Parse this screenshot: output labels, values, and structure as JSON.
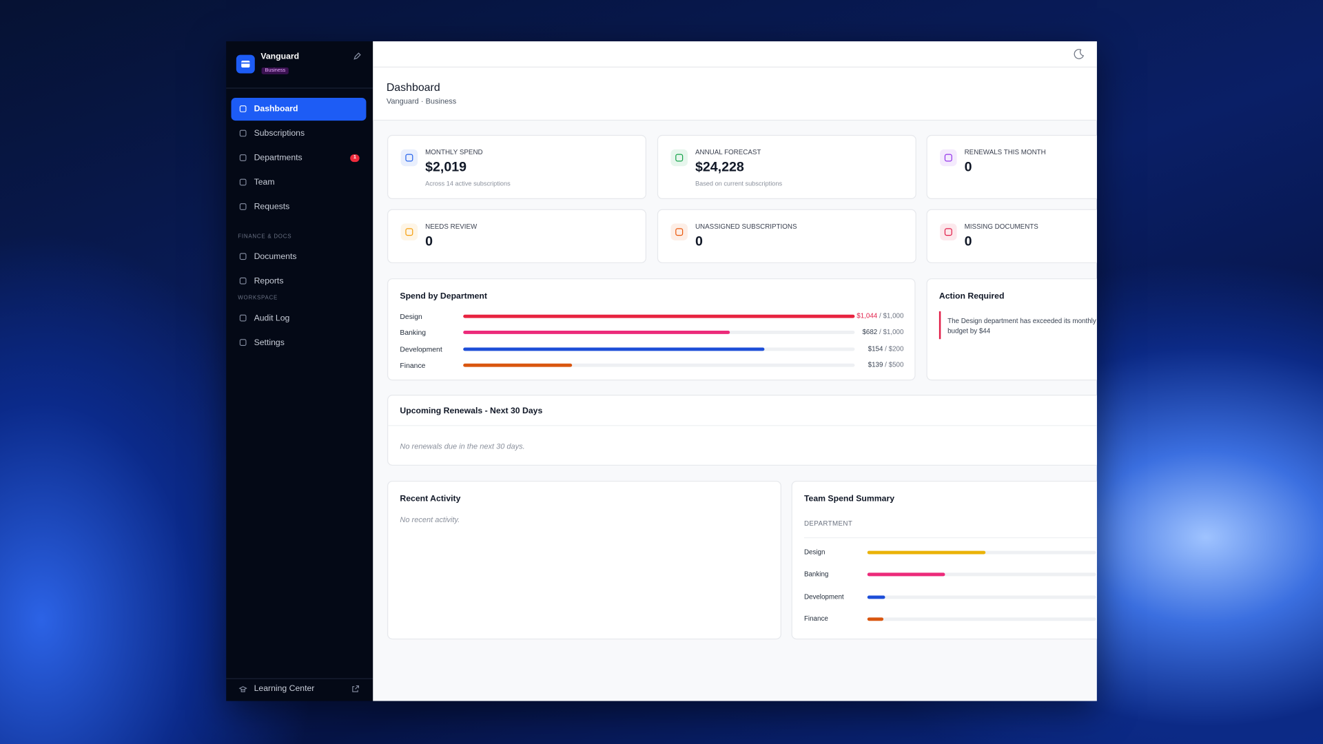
{
  "sidebar": {
    "brand": "Vanguard",
    "plan": "Business",
    "nav": [
      {
        "label": "Dashboard",
        "active": true
      },
      {
        "label": "Subscriptions"
      },
      {
        "label": "Departments",
        "badge": "1"
      },
      {
        "label": "Team"
      },
      {
        "label": "Requests"
      }
    ],
    "sections": [
      {
        "title": "FINANCE & DOCS",
        "items": [
          "Documents",
          "Reports"
        ]
      },
      {
        "title": "WORKSPACE",
        "items": [
          "Audit Log",
          "Settings"
        ]
      }
    ],
    "footer": "Learning Center"
  },
  "header": {
    "title": "Dashboard",
    "subtitle": "Vanguard · Business"
  },
  "stats": [
    {
      "label": "MONTHLY SPEND",
      "value": "$2,019",
      "note": "Across 14 active subscriptions",
      "color": "#2563eb"
    },
    {
      "label": "ANNUAL FORECAST",
      "value": "$24,228",
      "note": "Based on current subscriptions",
      "color": "#16a34a"
    },
    {
      "label": "RENEWALS THIS MONTH",
      "value": "0",
      "color": "#9333ea"
    },
    {
      "label": "NEEDS REVIEW",
      "value": "0",
      "color": "#f59e0b"
    },
    {
      "label": "UNASSIGNED SUBSCRIPTIONS",
      "value": "0",
      "color": "#ea580c"
    },
    {
      "label": "MISSING DOCUMENTS",
      "value": "0",
      "color": "#e11d48"
    }
  ],
  "spend_by_department": {
    "title": "Spend by Department",
    "separator": "/",
    "rows": [
      {
        "name": "Design",
        "spent": "$1,044",
        "budget": "$1,000",
        "color": "#e8233f"
      },
      {
        "name": "Banking",
        "spent": "$682",
        "budget": "$1,000",
        "color": "#ec2a7a"
      },
      {
        "name": "Development",
        "spent": "$154",
        "budget": "$200",
        "color": "#1d4ed8"
      },
      {
        "name": "Finance",
        "spent": "$139",
        "budget": "$500",
        "color": "#d9560f"
      }
    ]
  },
  "action_required": {
    "title": "Action Required",
    "message": "The Design department has exceeded its monthly budget by $44"
  },
  "upcoming_renewals": {
    "title": "Upcoming Renewals - Next 30 Days",
    "empty": "No renewals due in the next 30 days."
  },
  "recent_activity": {
    "title": "Recent Activity",
    "empty": "No recent activity."
  },
  "team_spend_summary": {
    "title": "Team Spend Summary",
    "column": "DEPARTMENT",
    "rows": [
      {
        "name": "Design",
        "color": "#eab308"
      },
      {
        "name": "Banking",
        "color": "#ec2a7a"
      },
      {
        "name": "Development",
        "color": "#1d4ed8"
      },
      {
        "name": "Finance",
        "color": "#d9560f"
      }
    ]
  }
}
